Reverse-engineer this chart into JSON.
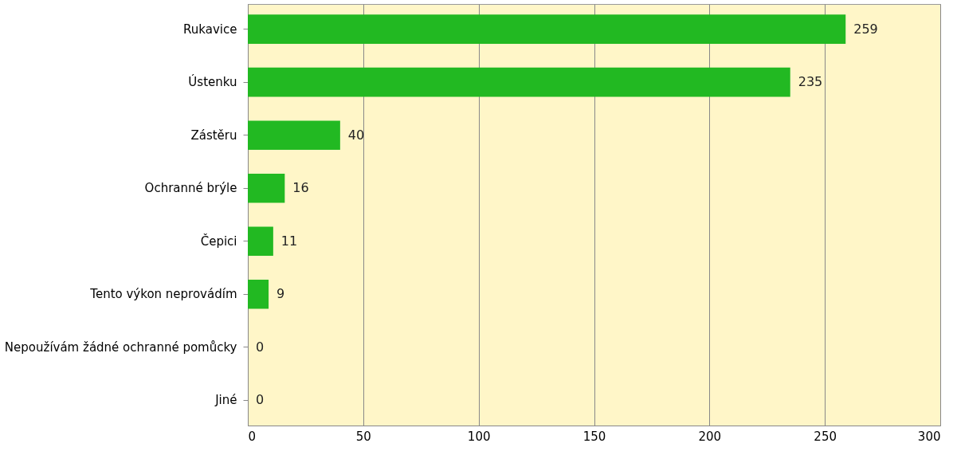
{
  "chart_data": {
    "type": "bar",
    "orientation": "horizontal",
    "categories": [
      "Rukavice",
      "Ústenku",
      "Zástěru",
      "Ochranné brýle",
      "Čepici",
      "Tento výkon neprovádím",
      "Nepoužívám žádné ochranné pomůcky",
      "Jiné"
    ],
    "values": [
      259,
      235,
      40,
      16,
      11,
      9,
      0,
      0
    ],
    "color": "#22b922",
    "xlim": [
      0,
      300
    ],
    "xticks": [
      0,
      50,
      100,
      150,
      200,
      250,
      300
    ],
    "grid": "x",
    "data_labels": true
  }
}
